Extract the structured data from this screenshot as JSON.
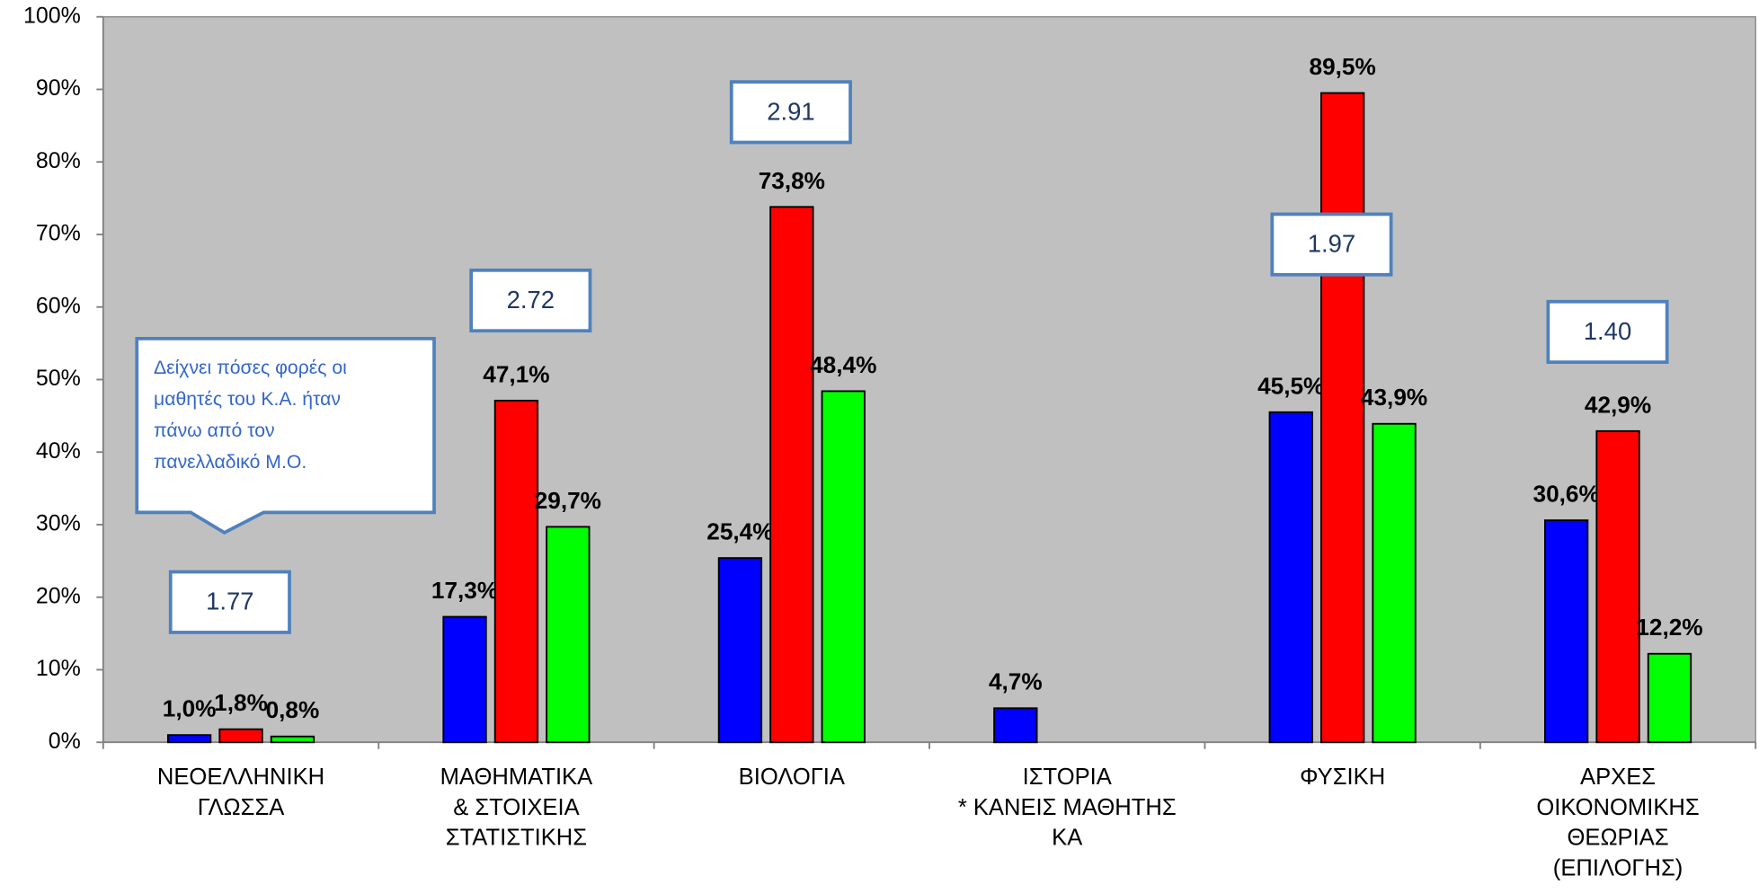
{
  "chart_data": {
    "type": "bar",
    "categories": [
      [
        "ΝΕΟΕΛΛΗΝΙΚΗ",
        "ΓΛΩΣΣΑ"
      ],
      [
        "ΜΑΘΗΜΑΤΙΚΑ",
        "& ΣΤΟΙΧΕΙΑ",
        "ΣΤΑΤΙΣΤΙΚΗΣ"
      ],
      [
        "ΒΙΟΛΟΓΙΑ"
      ],
      [
        "ΙΣΤΟΡΙΑ",
        "* ΚΑΝΕΙΣ ΜΑΘΗΤΗΣ",
        "ΚΑ"
      ],
      [
        "ΦΥΣΙΚΗ"
      ],
      [
        "ΑΡΧΕΣ",
        "ΟΙΚΟΝΟΜΙΚΗΣ",
        "ΘΕΩΡΙΑΣ",
        "(ΕΠΙΛΟΓΗΣ)"
      ]
    ],
    "series": [
      {
        "color": "#0000ff",
        "values": [
          1.0,
          17.3,
          25.4,
          4.7,
          45.5,
          30.6
        ],
        "value_labels": [
          "1,0%",
          "17,3%",
          "25,4%",
          "4,7%",
          "45,5%",
          "30,6%"
        ]
      },
      {
        "color": "#ff0000",
        "values": [
          1.8,
          47.1,
          73.8,
          null,
          89.5,
          42.9
        ],
        "value_labels": [
          "1,8%",
          "47,1%",
          "73,8%",
          null,
          "89,5%",
          "42,9%"
        ]
      },
      {
        "color": "#00ff00",
        "values": [
          0.8,
          29.7,
          48.4,
          null,
          43.9,
          12.2
        ],
        "value_labels": [
          "0,8%",
          "29,7%",
          "48,4%",
          null,
          "43,9%",
          "12,2%"
        ]
      }
    ],
    "ylim": [
      0,
      100
    ],
    "yticks": [
      {
        "value": 0,
        "label": "0%"
      },
      {
        "value": 10,
        "label": "10%"
      },
      {
        "value": 20,
        "label": "20%"
      },
      {
        "value": 30,
        "label": "30%"
      },
      {
        "value": 40,
        "label": "40%"
      },
      {
        "value": 50,
        "label": "50%"
      },
      {
        "value": 60,
        "label": "60%"
      },
      {
        "value": 70,
        "label": "70%"
      },
      {
        "value": 80,
        "label": "80%"
      },
      {
        "value": 90,
        "label": "90%"
      },
      {
        "value": 100,
        "label": "100%"
      }
    ],
    "grid": false,
    "annotations": [
      "1.77",
      "2.72",
      "2.91",
      "1.97",
      "1.40"
    ],
    "callout": [
      "Δείχνει πόσες φορές οι",
      "μαθητές του Κ.Α. ήταν",
      "πάνω από τον",
      "πανελλαδικό Μ.Ο."
    ]
  }
}
